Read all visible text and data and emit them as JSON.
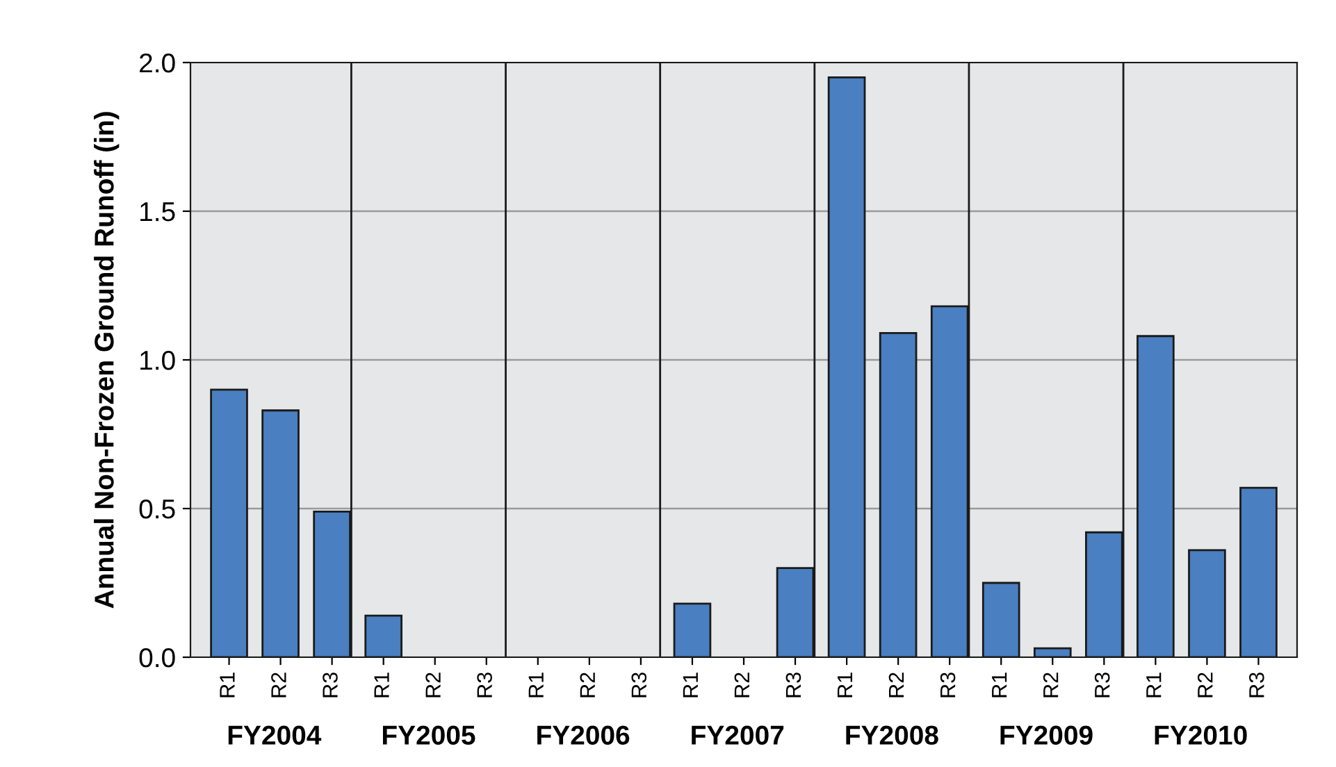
{
  "chart_data": {
    "type": "bar",
    "categories": [
      "R1",
      "R2",
      "R3",
      "R1",
      "R2",
      "R3",
      "R1",
      "R2",
      "R3",
      "R1",
      "R2",
      "R3",
      "R1",
      "R2",
      "R3",
      "R1",
      "R2",
      "R3",
      "R1",
      "R2",
      "R3"
    ],
    "values": [
      0.9,
      0.83,
      0.49,
      0.14,
      null,
      null,
      null,
      null,
      null,
      0.18,
      null,
      0.3,
      1.95,
      1.09,
      1.18,
      0.25,
      0.03,
      0.42,
      1.08,
      0.36,
      0.57
    ],
    "color": "#4a7fc1",
    "ylabel": "Annual Non-Frozen Ground Runoff (in)",
    "annotations": [
      "FY2004",
      "FY2005",
      "FY2006",
      "FY2007",
      "FY2008",
      "FY2009",
      "FY2010"
    ],
    "ylim": [
      0,
      2.0
    ],
    "yticks": [
      {
        "value": 0,
        "label": "0.0"
      },
      0.5,
      {
        "value": 1,
        "label": "1.0"
      },
      1.5,
      {
        "value": 2,
        "label": "2.0"
      }
    ],
    "grid": "y"
  }
}
